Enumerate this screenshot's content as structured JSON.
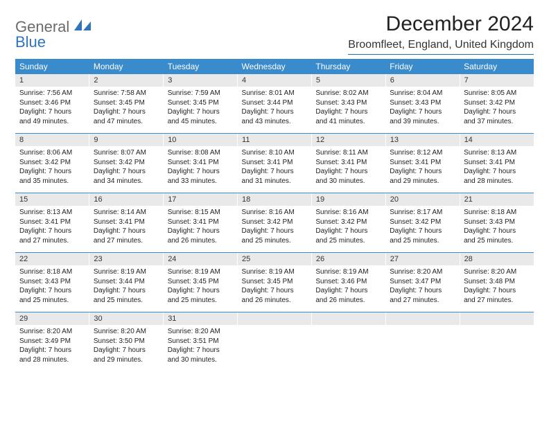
{
  "brand": {
    "part1": "General",
    "part2": "Blue"
  },
  "title": "December 2024",
  "location": "Broomfleet, England, United Kingdom",
  "colors": {
    "header_bg": "#3a8bcc",
    "header_text": "#ffffff",
    "daynum_bg": "#e9e9e9",
    "rule": "#3a8bcc",
    "brand_gray": "#6b6b6b",
    "brand_blue": "#2f75bd"
  },
  "dow": [
    "Sunday",
    "Monday",
    "Tuesday",
    "Wednesday",
    "Thursday",
    "Friday",
    "Saturday"
  ],
  "weeks": [
    {
      "nums": [
        "1",
        "2",
        "3",
        "4",
        "5",
        "6",
        "7"
      ],
      "cells": [
        {
          "sunrise": "7:56 AM",
          "sunset": "3:46 PM",
          "daylight": "7 hours and 49 minutes."
        },
        {
          "sunrise": "7:58 AM",
          "sunset": "3:45 PM",
          "daylight": "7 hours and 47 minutes."
        },
        {
          "sunrise": "7:59 AM",
          "sunset": "3:45 PM",
          "daylight": "7 hours and 45 minutes."
        },
        {
          "sunrise": "8:01 AM",
          "sunset": "3:44 PM",
          "daylight": "7 hours and 43 minutes."
        },
        {
          "sunrise": "8:02 AM",
          "sunset": "3:43 PM",
          "daylight": "7 hours and 41 minutes."
        },
        {
          "sunrise": "8:04 AM",
          "sunset": "3:43 PM",
          "daylight": "7 hours and 39 minutes."
        },
        {
          "sunrise": "8:05 AM",
          "sunset": "3:42 PM",
          "daylight": "7 hours and 37 minutes."
        }
      ]
    },
    {
      "nums": [
        "8",
        "9",
        "10",
        "11",
        "12",
        "13",
        "14"
      ],
      "cells": [
        {
          "sunrise": "8:06 AM",
          "sunset": "3:42 PM",
          "daylight": "7 hours and 35 minutes."
        },
        {
          "sunrise": "8:07 AM",
          "sunset": "3:42 PM",
          "daylight": "7 hours and 34 minutes."
        },
        {
          "sunrise": "8:08 AM",
          "sunset": "3:41 PM",
          "daylight": "7 hours and 33 minutes."
        },
        {
          "sunrise": "8:10 AM",
          "sunset": "3:41 PM",
          "daylight": "7 hours and 31 minutes."
        },
        {
          "sunrise": "8:11 AM",
          "sunset": "3:41 PM",
          "daylight": "7 hours and 30 minutes."
        },
        {
          "sunrise": "8:12 AM",
          "sunset": "3:41 PM",
          "daylight": "7 hours and 29 minutes."
        },
        {
          "sunrise": "8:13 AM",
          "sunset": "3:41 PM",
          "daylight": "7 hours and 28 minutes."
        }
      ]
    },
    {
      "nums": [
        "15",
        "16",
        "17",
        "18",
        "19",
        "20",
        "21"
      ],
      "cells": [
        {
          "sunrise": "8:13 AM",
          "sunset": "3:41 PM",
          "daylight": "7 hours and 27 minutes."
        },
        {
          "sunrise": "8:14 AM",
          "sunset": "3:41 PM",
          "daylight": "7 hours and 27 minutes."
        },
        {
          "sunrise": "8:15 AM",
          "sunset": "3:41 PM",
          "daylight": "7 hours and 26 minutes."
        },
        {
          "sunrise": "8:16 AM",
          "sunset": "3:42 PM",
          "daylight": "7 hours and 25 minutes."
        },
        {
          "sunrise": "8:16 AM",
          "sunset": "3:42 PM",
          "daylight": "7 hours and 25 minutes."
        },
        {
          "sunrise": "8:17 AM",
          "sunset": "3:42 PM",
          "daylight": "7 hours and 25 minutes."
        },
        {
          "sunrise": "8:18 AM",
          "sunset": "3:43 PM",
          "daylight": "7 hours and 25 minutes."
        }
      ]
    },
    {
      "nums": [
        "22",
        "23",
        "24",
        "25",
        "26",
        "27",
        "28"
      ],
      "cells": [
        {
          "sunrise": "8:18 AM",
          "sunset": "3:43 PM",
          "daylight": "7 hours and 25 minutes."
        },
        {
          "sunrise": "8:19 AM",
          "sunset": "3:44 PM",
          "daylight": "7 hours and 25 minutes."
        },
        {
          "sunrise": "8:19 AM",
          "sunset": "3:45 PM",
          "daylight": "7 hours and 25 minutes."
        },
        {
          "sunrise": "8:19 AM",
          "sunset": "3:45 PM",
          "daylight": "7 hours and 26 minutes."
        },
        {
          "sunrise": "8:19 AM",
          "sunset": "3:46 PM",
          "daylight": "7 hours and 26 minutes."
        },
        {
          "sunrise": "8:20 AM",
          "sunset": "3:47 PM",
          "daylight": "7 hours and 27 minutes."
        },
        {
          "sunrise": "8:20 AM",
          "sunset": "3:48 PM",
          "daylight": "7 hours and 27 minutes."
        }
      ]
    },
    {
      "nums": [
        "29",
        "30",
        "31",
        "",
        "",
        "",
        ""
      ],
      "cells": [
        {
          "sunrise": "8:20 AM",
          "sunset": "3:49 PM",
          "daylight": "7 hours and 28 minutes."
        },
        {
          "sunrise": "8:20 AM",
          "sunset": "3:50 PM",
          "daylight": "7 hours and 29 minutes."
        },
        {
          "sunrise": "8:20 AM",
          "sunset": "3:51 PM",
          "daylight": "7 hours and 30 minutes."
        },
        null,
        null,
        null,
        null
      ]
    }
  ],
  "labels": {
    "sunrise": "Sunrise:",
    "sunset": "Sunset:",
    "daylight": "Daylight:"
  }
}
